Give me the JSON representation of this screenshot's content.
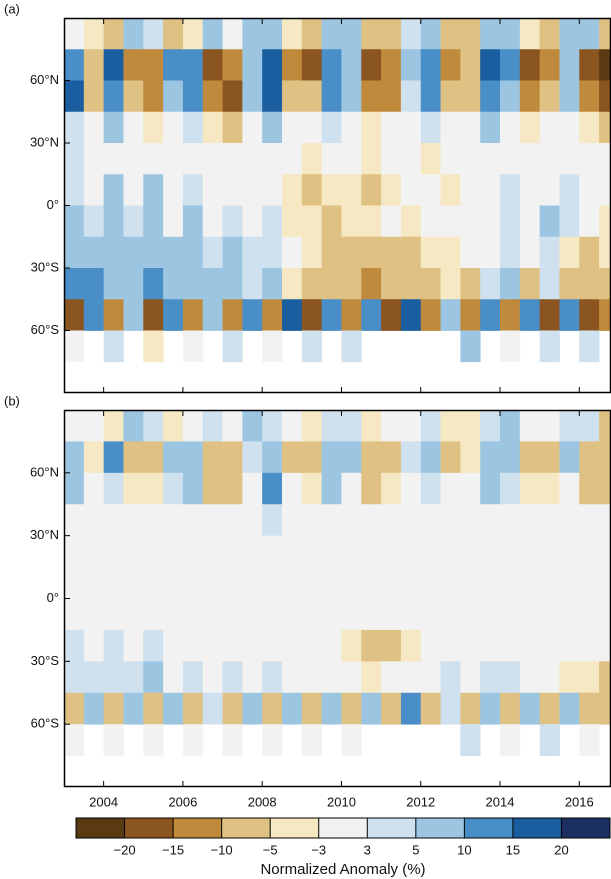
{
  "chart_data": [
    {
      "type": "heatmap",
      "panel_label": "(a)",
      "x": [
        2003.25,
        2003.75,
        2004.25,
        2004.75,
        2005.25,
        2005.75,
        2006.25,
        2006.75,
        2007.25,
        2007.75,
        2008.25,
        2008.75,
        2009.25,
        2009.75,
        2010.25,
        2010.75,
        2011.25,
        2011.75,
        2012.25,
        2012.75,
        2013.25,
        2013.75,
        2014.25,
        2014.75,
        2015.25,
        2015.75,
        2016.25,
        2016.75
      ],
      "y": [
        82.5,
        67.5,
        52.5,
        37.5,
        22.5,
        7.5,
        -7.5,
        -22.5,
        -37.5,
        -52.5,
        -67.5
      ],
      "values": [
        [
          2,
          -4,
          -6,
          8,
          4,
          -7,
          -5,
          6,
          -3,
          9,
          7,
          -4,
          -8,
          5,
          6,
          -7,
          -6,
          4,
          5,
          -8,
          -7,
          6,
          8,
          -4,
          -6,
          7,
          5,
          -9
        ],
        [
          12,
          -8,
          18,
          -12,
          -15,
          14,
          10,
          -16,
          -12,
          8,
          16,
          -14,
          -18,
          11,
          9,
          -20,
          -15,
          6,
          14,
          -12,
          -10,
          16,
          12,
          -17,
          -14,
          9,
          -16,
          -22
        ],
        [
          16,
          -6,
          14,
          -10,
          -12,
          8,
          12,
          -14,
          -16,
          6,
          18,
          -8,
          -10,
          12,
          6,
          -15,
          -12,
          4,
          10,
          -8,
          -6,
          14,
          8,
          -12,
          -10,
          6,
          -14,
          -18
        ],
        [
          4,
          -2,
          6,
          -3,
          -4,
          2,
          3,
          -5,
          -6,
          1,
          8,
          -3,
          -2,
          4,
          1,
          -4,
          -3,
          2,
          4,
          -2,
          -1,
          5,
          2,
          -4,
          -3,
          2,
          -5,
          -6
        ],
        [
          3,
          1,
          2,
          -1,
          2,
          -2,
          1,
          -3,
          -2,
          1,
          2,
          -1,
          -4,
          -3,
          -2,
          -4,
          -3,
          -2,
          -4,
          -3,
          -2,
          -1,
          1,
          -2,
          -1,
          2,
          -2,
          -3
        ],
        [
          4,
          2,
          5,
          -1,
          6,
          2,
          3,
          -2,
          1,
          -1,
          2,
          -4,
          -6,
          -5,
          -4,
          -6,
          -5,
          -3,
          -2,
          -4,
          -1,
          2,
          3,
          -1,
          2,
          4,
          -3,
          -2
        ],
        [
          6,
          4,
          8,
          3,
          5,
          2,
          6,
          -2,
          4,
          -1,
          3,
          -4,
          -5,
          -6,
          -4,
          -5,
          -3,
          -4,
          -2,
          -3,
          1,
          2,
          4,
          -2,
          5,
          3,
          -2,
          -4
        ],
        [
          9,
          8,
          7,
          6,
          8,
          5,
          9,
          4,
          6,
          3,
          4,
          -3,
          -4,
          -6,
          -8,
          -9,
          -8,
          -6,
          -5,
          -4,
          -3,
          2,
          3,
          -2,
          4,
          -4,
          -6,
          -5
        ],
        [
          12,
          10,
          8,
          9,
          11,
          7,
          8,
          6,
          5,
          4,
          6,
          -4,
          -6,
          -8,
          -10,
          -12,
          -9,
          -7,
          -6,
          -5,
          -8,
          4,
          6,
          -6,
          3,
          -8,
          -10,
          -9
        ],
        [
          -18,
          12,
          -14,
          9,
          -16,
          14,
          -12,
          8,
          -15,
          11,
          -13,
          16,
          -17,
          10,
          -14,
          12,
          -16,
          18,
          -12,
          9,
          -15,
          14,
          -13,
          10,
          -18,
          12,
          -16,
          -14
        ],
        [
          2,
          null,
          3,
          null,
          -4,
          null,
          2,
          null,
          3,
          null,
          -2,
          null,
          4,
          null,
          3,
          null,
          null,
          null,
          null,
          null,
          6,
          null,
          -3,
          null,
          4,
          null,
          3,
          null
        ]
      ],
      "xlim": [
        2003,
        2016.8
      ],
      "ylim": [
        -90,
        90
      ],
      "xticks": [
        2004,
        2006,
        2008,
        2010,
        2012,
        2014,
        2016
      ],
      "yticks": [
        {
          "value": 60,
          "label": "60°N"
        },
        {
          "value": 30,
          "label": "30°N"
        },
        {
          "value": 0,
          "label": "0°"
        },
        {
          "value": -30,
          "label": "30°S"
        },
        {
          "value": -60,
          "label": "60°S"
        }
      ]
    },
    {
      "type": "heatmap",
      "panel_label": "(b)",
      "x": [
        2003.25,
        2003.75,
        2004.25,
        2004.75,
        2005.25,
        2005.75,
        2006.25,
        2006.75,
        2007.25,
        2007.75,
        2008.25,
        2008.75,
        2009.25,
        2009.75,
        2010.25,
        2010.75,
        2011.25,
        2011.75,
        2012.25,
        2012.75,
        2013.25,
        2013.75,
        2014.25,
        2014.75,
        2015.25,
        2015.75,
        2016.25,
        2016.75
      ],
      "y": [
        82.5,
        67.5,
        52.5,
        37.5,
        22.5,
        7.5,
        -7.5,
        -22.5,
        -37.5,
        -52.5,
        -67.5
      ],
      "values": [
        [
          1,
          -2,
          -4,
          6,
          3,
          -4,
          -3,
          4,
          -2,
          5,
          4,
          -3,
          -5,
          3,
          4,
          -4,
          -3,
          2,
          3,
          -5,
          -4,
          3,
          5,
          -2,
          -3,
          4,
          3,
          -6
        ],
        [
          8,
          -4,
          10,
          -6,
          -8,
          6,
          5,
          -8,
          -6,
          4,
          9,
          -6,
          -10,
          6,
          5,
          -9,
          -7,
          3,
          8,
          -6,
          -5,
          8,
          6,
          -8,
          -7,
          5,
          -8,
          -10
        ],
        [
          6,
          -2,
          4,
          -4,
          -5,
          3,
          5,
          -6,
          -7,
          2,
          12,
          -3,
          -4,
          5,
          2,
          -6,
          -5,
          1,
          4,
          -3,
          -2,
          6,
          3,
          -5,
          -4,
          2,
          -6,
          -8
        ],
        [
          1,
          0,
          2,
          0,
          -1,
          0,
          1,
          -1,
          -2,
          0,
          3,
          -1,
          0,
          1,
          0,
          -1,
          -1,
          0,
          1,
          0,
          0,
          2,
          1,
          -1,
          -1,
          0,
          -2,
          -2
        ],
        [
          0,
          0,
          1,
          0,
          0,
          -1,
          0,
          0,
          -1,
          0,
          1,
          0,
          0,
          0,
          -1,
          0,
          0,
          0,
          0,
          0,
          0,
          0,
          1,
          0,
          0,
          1,
          0,
          0
        ],
        [
          1,
          0,
          2,
          0,
          1,
          0,
          1,
          0,
          0,
          0,
          0,
          -1,
          -1,
          0,
          0,
          -1,
          0,
          0,
          0,
          0,
          0,
          1,
          1,
          0,
          0,
          1,
          0,
          0
        ],
        [
          1,
          1,
          2,
          0,
          1,
          0,
          1,
          0,
          1,
          0,
          1,
          0,
          -1,
          -1,
          0,
          -1,
          0,
          -1,
          0,
          0,
          0,
          1,
          1,
          0,
          1,
          0,
          0,
          -1
        ],
        [
          3,
          2,
          4,
          2,
          3,
          1,
          2,
          1,
          2,
          1,
          2,
          0,
          -1,
          -2,
          -4,
          -7,
          -6,
          -4,
          -2,
          -1,
          0,
          1,
          2,
          0,
          1,
          -1,
          -2,
          -2
        ],
        [
          4,
          3,
          3,
          4,
          5,
          2,
          4,
          2,
          3,
          2,
          3,
          -1,
          -2,
          -3,
          -3,
          -4,
          -3,
          -2,
          2,
          3,
          -1,
          4,
          3,
          -3,
          2,
          -4,
          -5,
          -6
        ],
        [
          -10,
          6,
          -8,
          5,
          -9,
          8,
          -7,
          4,
          -8,
          6,
          -7,
          9,
          -10,
          5,
          -8,
          6,
          -9,
          10,
          -6,
          4,
          -8,
          7,
          -6,
          5,
          -10,
          6,
          -9,
          -8
        ],
        [
          -3,
          null,
          2,
          null,
          -2,
          null,
          1,
          null,
          2,
          null,
          -1,
          null,
          2,
          null,
          1,
          null,
          null,
          null,
          null,
          null,
          4,
          null,
          -2,
          null,
          3,
          null,
          2,
          null
        ]
      ],
      "xlim": [
        2003,
        2016.8
      ],
      "ylim": [
        -90,
        90
      ],
      "xticks": [
        2004,
        2006,
        2008,
        2010,
        2012,
        2014,
        2016
      ],
      "yticks": [
        {
          "value": 60,
          "label": "60°N"
        },
        {
          "value": 30,
          "label": "30°N"
        },
        {
          "value": 0,
          "label": "0°"
        },
        {
          "value": -30,
          "label": "30°S"
        },
        {
          "value": -60,
          "label": "60°S"
        }
      ]
    },
    {
      "type": "colorbar",
      "title": "Normalized Anomaly (%)",
      "ticks": [
        {
          "value": -20,
          "label": "−20"
        },
        {
          "value": -15,
          "label": "−15"
        },
        {
          "value": -10,
          "label": "−10"
        },
        {
          "value": -5,
          "label": "−5"
        },
        {
          "value": -3,
          "label": "−3"
        },
        3,
        5,
        10,
        15,
        20
      ],
      "colors": [
        "#5a3a12",
        "#8a5520",
        "#c08a3c",
        "#dfc183",
        "#f5e8c2",
        "#f2f2f2",
        "#cfe1ee",
        "#9cc5e2",
        "#4a8ec8",
        "#1a5ea0",
        "#1b2f60"
      ]
    }
  ]
}
